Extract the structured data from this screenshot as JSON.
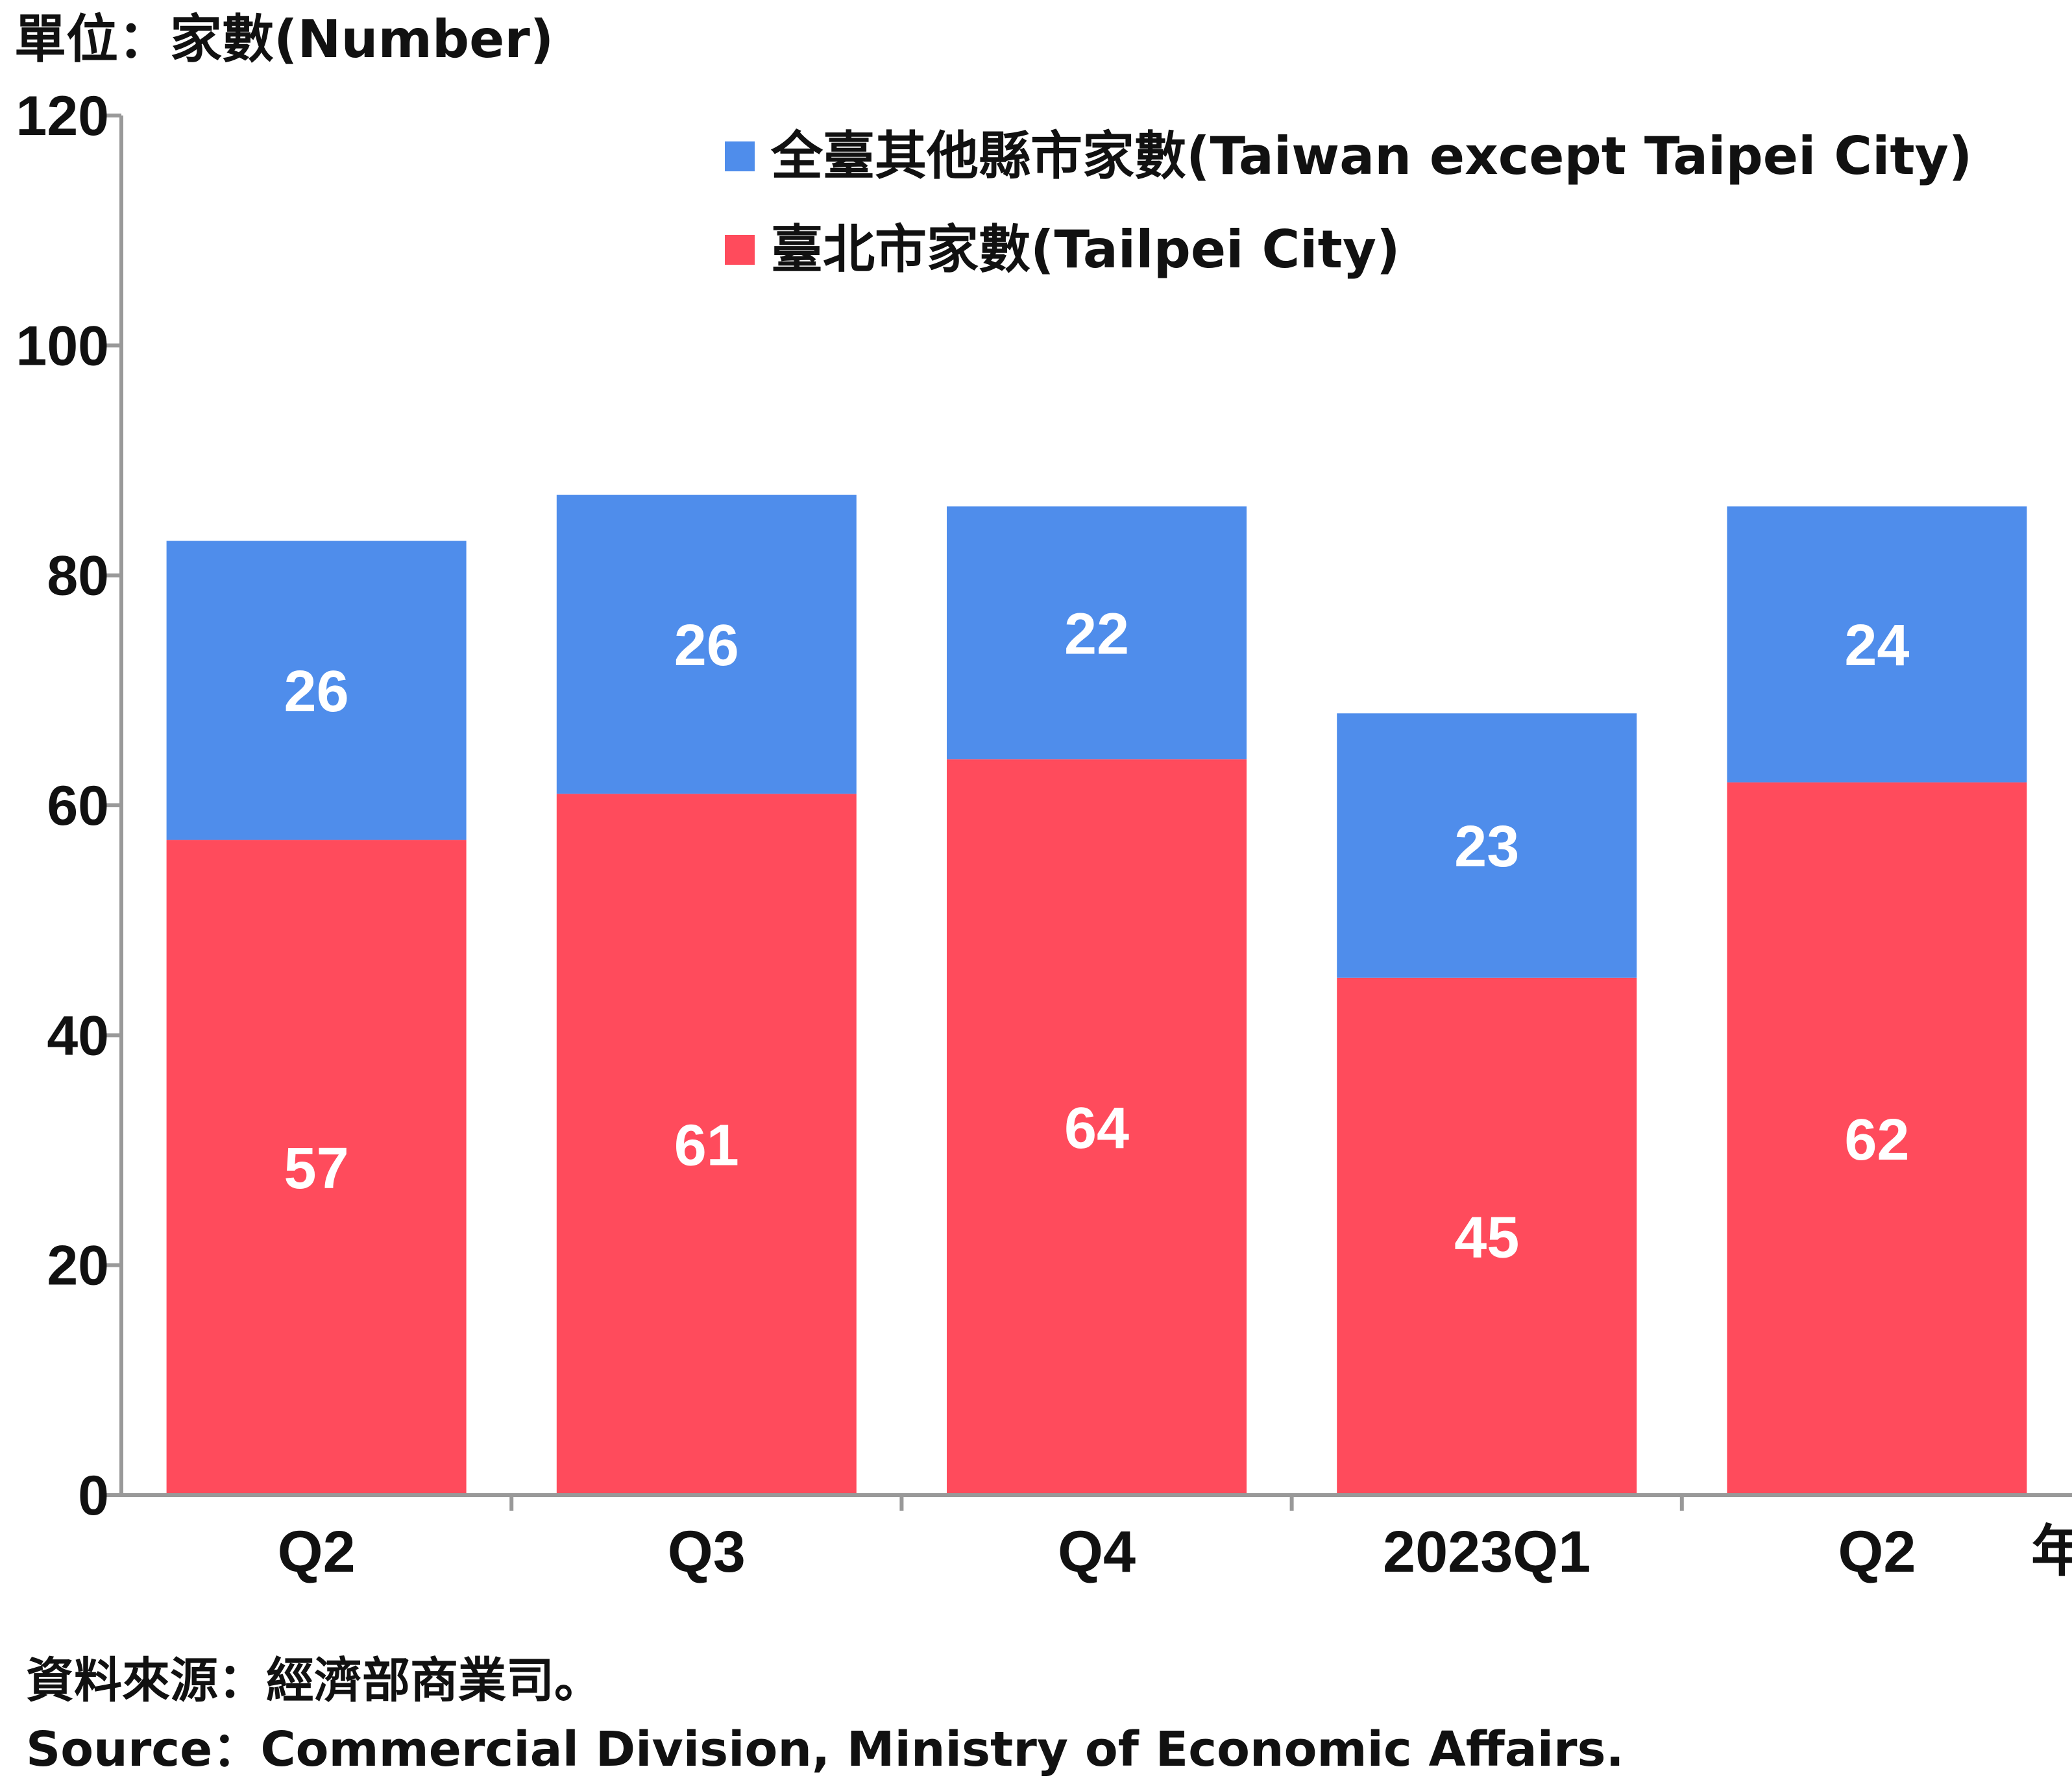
{
  "chart_data": {
    "type": "bar",
    "stacked": true,
    "unit_label": "單位：家數(Number)",
    "x_unit": "年",
    "categories": [
      "Q2",
      "Q3",
      "Q4",
      "2023Q1",
      "Q2"
    ],
    "series": [
      {
        "name": "臺北市家數(Tailpei City)",
        "color": "#FF4B5C",
        "values": [
          57,
          61,
          64,
          45,
          62
        ]
      },
      {
        "name": "全臺其他縣市家數(Taiwan except Taipei City)",
        "color": "#4F8DEB",
        "values": [
          26,
          26,
          22,
          23,
          24
        ]
      }
    ],
    "legend_order": [
      1,
      0
    ],
    "legend_position": "top-right",
    "ylim": [
      0,
      120
    ],
    "yticks": [
      0,
      20,
      40,
      60,
      80,
      100,
      120
    ],
    "grid": false
  },
  "footer": {
    "source_zh": "資料來源：經濟部商業司。",
    "source_en": "Source：Commercial Division, Ministry of Economic Affairs."
  }
}
